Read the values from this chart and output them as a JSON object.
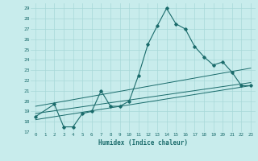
{
  "xlabel": "Humidex (Indice chaleur)",
  "bg_color": "#c8ecec",
  "line_color": "#1a6b6b",
  "grid_color": "#a8d8d8",
  "xlim": [
    -0.5,
    23.5
  ],
  "ylim": [
    17,
    29.5
  ],
  "yticks": [
    17,
    18,
    19,
    20,
    21,
    22,
    23,
    24,
    25,
    26,
    27,
    28,
    29
  ],
  "xticks": [
    0,
    1,
    2,
    3,
    4,
    5,
    6,
    7,
    8,
    9,
    10,
    11,
    12,
    13,
    14,
    15,
    16,
    17,
    18,
    19,
    20,
    21,
    22,
    23
  ],
  "line1_x": [
    0,
    2,
    3,
    4,
    5,
    6,
    7,
    8,
    9,
    10,
    11,
    12,
    13,
    14,
    15,
    16,
    17,
    18,
    19,
    20,
    21,
    22,
    23
  ],
  "line1_y": [
    18.5,
    19.7,
    17.5,
    17.5,
    18.8,
    19.0,
    21.0,
    19.5,
    19.5,
    20.0,
    22.5,
    25.5,
    27.3,
    29.0,
    27.5,
    27.0,
    25.3,
    24.3,
    23.5,
    23.8,
    22.8,
    21.5,
    21.5
  ],
  "line2_x": [
    0,
    23
  ],
  "line2_y": [
    18.8,
    21.8
  ],
  "line3_x": [
    0,
    23
  ],
  "line3_y": [
    19.5,
    23.2
  ],
  "line4_x": [
    0,
    23
  ],
  "line4_y": [
    18.2,
    21.5
  ]
}
